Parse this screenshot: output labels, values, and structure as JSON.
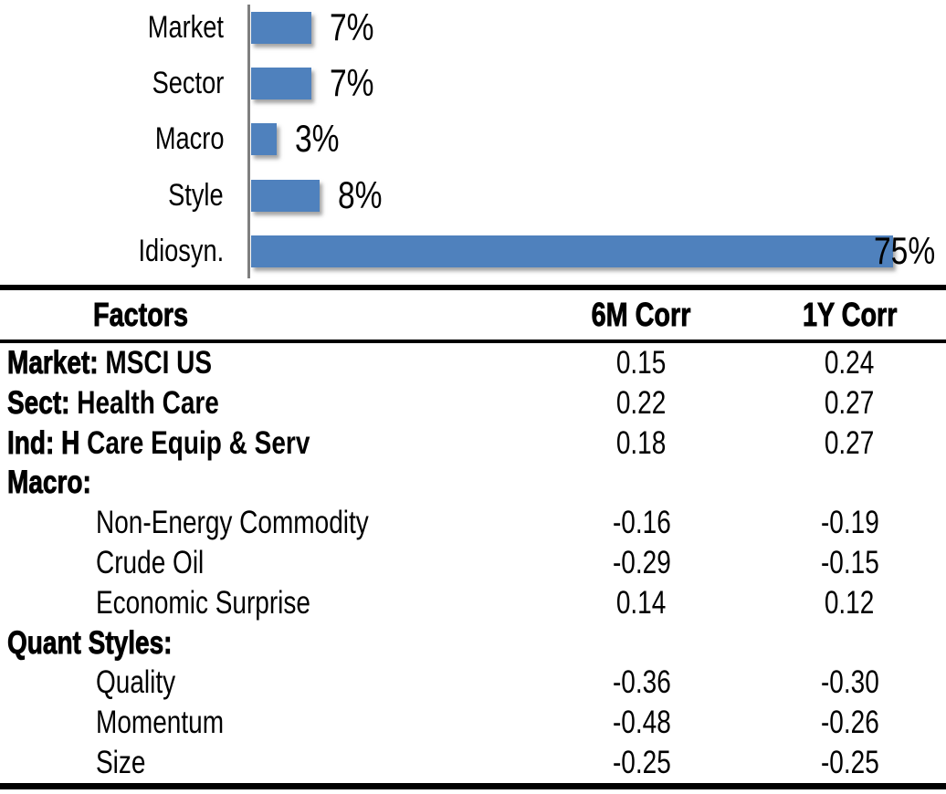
{
  "chart_data": [
    {
      "type": "bar",
      "orientation": "horizontal",
      "title": "",
      "categories": [
        "Market",
        "Sector",
        "Macro",
        "Style",
        "Idiosyn."
      ],
      "values": [
        7,
        7,
        3,
        8,
        75
      ],
      "data_labels": [
        "7%",
        "7%",
        "3%",
        "8%",
        "75%"
      ],
      "xlim": [
        0,
        80
      ],
      "grid": false,
      "legend": "none",
      "bar_color": "#4F81BD",
      "axis_color": "#7F7F7F"
    },
    {
      "type": "table",
      "columns": [
        "Factors",
        "6M Corr",
        "1Y Corr"
      ],
      "rows": [
        {
          "bold_part": "Market:",
          "rest": "MSCI US",
          "indent": false,
          "corr_6m": "0.15",
          "corr_1y": "0.24"
        },
        {
          "bold_part": "Sect:",
          "rest": "Health Care",
          "indent": false,
          "corr_6m": "0.22",
          "corr_1y": "0.27"
        },
        {
          "bold_part": "Ind: H",
          "rest": "Care Equip & Serv",
          "indent": false,
          "corr_6m": "0.18",
          "corr_1y": "0.27"
        },
        {
          "bold_part": "Macro:",
          "rest": "",
          "indent": false,
          "corr_6m": "",
          "corr_1y": ""
        },
        {
          "bold_part": "",
          "rest": "Non-Energy Commodity",
          "indent": true,
          "corr_6m": "-0.16",
          "corr_1y": "-0.19"
        },
        {
          "bold_part": "",
          "rest": "Crude Oil",
          "indent": true,
          "corr_6m": "-0.29",
          "corr_1y": "-0.15"
        },
        {
          "bold_part": "",
          "rest": "Economic Surprise",
          "indent": true,
          "corr_6m": "0.14",
          "corr_1y": "0.12"
        },
        {
          "bold_part": "Quant Styles:",
          "rest": "",
          "indent": false,
          "corr_6m": "",
          "corr_1y": ""
        },
        {
          "bold_part": "",
          "rest": "Quality",
          "indent": true,
          "corr_6m": "-0.36",
          "corr_1y": "-0.30"
        },
        {
          "bold_part": "",
          "rest": "Momentum",
          "indent": true,
          "corr_6m": "-0.48",
          "corr_1y": "-0.26"
        },
        {
          "bold_part": "",
          "rest": "Size",
          "indent": true,
          "corr_6m": "-0.25",
          "corr_1y": "-0.25"
        }
      ]
    }
  ]
}
